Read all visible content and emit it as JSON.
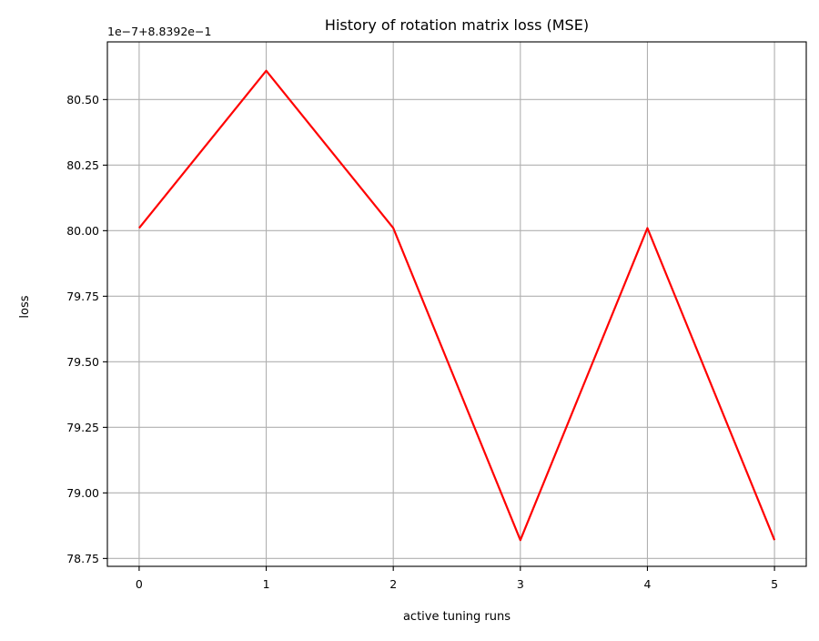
{
  "chart_data": {
    "type": "line",
    "title": "History of rotation matrix loss (MSE)",
    "xlabel": "active tuning runs",
    "ylabel": "loss",
    "offset_text": "1e−7+8.8392e−1",
    "x": [
      0,
      1,
      2,
      3,
      4,
      5
    ],
    "series": [
      {
        "values": [
          80.01,
          80.61,
          80.01,
          78.82,
          80.01,
          78.82
        ],
        "color": "#ff0000"
      }
    ],
    "xlim": [
      -0.25,
      5.25
    ],
    "ylim": [
      78.72,
      80.72
    ],
    "xticks": [
      0,
      1,
      2,
      3,
      4,
      5
    ],
    "xtick_labels": [
      "0",
      "1",
      "2",
      "3",
      "4",
      "5"
    ],
    "yticks": [
      78.75,
      79.0,
      79.25,
      79.5,
      79.75,
      80.0,
      80.25,
      80.5
    ],
    "ytick_labels": [
      "78.75",
      "79.00",
      "79.25",
      "79.50",
      "79.75",
      "80.00",
      "80.25",
      "80.50"
    ],
    "grid": true,
    "grid_color": "#b0b0b0",
    "legend": "none"
  }
}
